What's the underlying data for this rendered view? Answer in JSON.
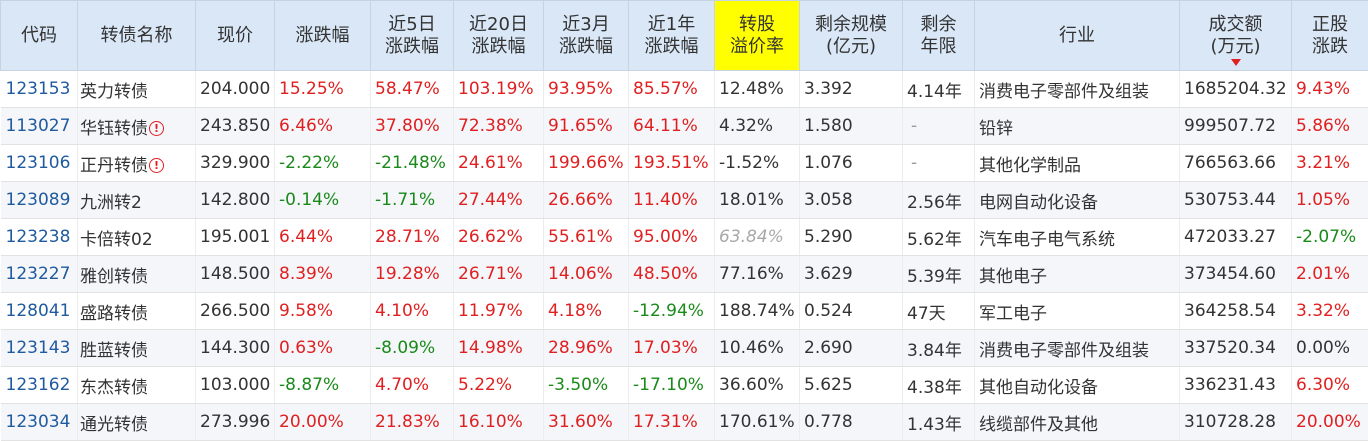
{
  "columns": [
    "代码",
    "转债名称",
    "现价",
    "涨跌幅",
    "近5日\n涨跌幅",
    "近20日\n涨跌幅",
    "近3月\n涨跌幅",
    "近1年\n涨跌幅",
    "转股\n溢价率",
    "剩余规模\n(亿元)",
    "剩余\n年限",
    "行业",
    "成交额\n(万元)",
    "正股\n涨跌"
  ],
  "highlight_column": 8,
  "sorted_column": 12,
  "sort_direction": "desc",
  "rows": [
    {
      "code": "123153",
      "name": "英力转债",
      "warn": false,
      "price": "204.000",
      "chg": "15.25%",
      "chg5": "58.47%",
      "chg20": "103.19%",
      "chg3m": "93.95%",
      "chg1y": "85.57%",
      "premium": "12.48%",
      "premium_muted": false,
      "size": "3.392",
      "years": "4.14年",
      "industry": "消费电子零部件及组装",
      "amount": "1685204.32",
      "stock_chg": "9.43%"
    },
    {
      "code": "113027",
      "name": "华钰转债",
      "warn": true,
      "price": "243.850",
      "chg": "6.46%",
      "chg5": "37.80%",
      "chg20": "72.38%",
      "chg3m": "91.65%",
      "chg1y": "64.11%",
      "premium": "4.32%",
      "premium_muted": false,
      "size": "1.580",
      "years": "-",
      "industry": "铅锌",
      "amount": "999507.72",
      "stock_chg": "5.86%"
    },
    {
      "code": "123106",
      "name": "正丹转债",
      "warn": true,
      "price": "329.900",
      "chg": "-2.22%",
      "chg5": "-21.48%",
      "chg20": "24.61%",
      "chg3m": "199.66%",
      "chg1y": "193.51%",
      "premium": "-1.52%",
      "premium_muted": false,
      "size": "1.076",
      "years": "-",
      "industry": "其他化学制品",
      "amount": "766563.66",
      "stock_chg": "3.21%"
    },
    {
      "code": "123089",
      "name": "九洲转2",
      "warn": false,
      "price": "142.800",
      "chg": "-0.14%",
      "chg5": "-1.71%",
      "chg20": "27.44%",
      "chg3m": "26.66%",
      "chg1y": "11.40%",
      "premium": "18.01%",
      "premium_muted": false,
      "size": "3.058",
      "years": "2.56年",
      "industry": "电网自动化设备",
      "amount": "530753.44",
      "stock_chg": "1.05%"
    },
    {
      "code": "123238",
      "name": "卡倍转02",
      "warn": false,
      "price": "195.001",
      "chg": "6.44%",
      "chg5": "28.71%",
      "chg20": "26.62%",
      "chg3m": "55.61%",
      "chg1y": "95.00%",
      "premium": "63.84%",
      "premium_muted": true,
      "size": "5.290",
      "years": "5.62年",
      "industry": "汽车电子电气系统",
      "amount": "472033.27",
      "stock_chg": "-2.07%"
    },
    {
      "code": "123227",
      "name": "雅创转债",
      "warn": false,
      "price": "148.500",
      "chg": "8.39%",
      "chg5": "19.28%",
      "chg20": "26.71%",
      "chg3m": "14.06%",
      "chg1y": "48.50%",
      "premium": "77.16%",
      "premium_muted": false,
      "size": "3.629",
      "years": "5.39年",
      "industry": "其他电子",
      "amount": "373454.60",
      "stock_chg": "2.01%"
    },
    {
      "code": "128041",
      "name": "盛路转债",
      "warn": false,
      "price": "266.500",
      "chg": "9.58%",
      "chg5": "4.10%",
      "chg20": "11.97%",
      "chg3m": "4.18%",
      "chg1y": "-12.94%",
      "premium": "188.74%",
      "premium_muted": false,
      "size": "0.524",
      "years": "47天",
      "industry": "军工电子",
      "amount": "364258.54",
      "stock_chg": "3.32%"
    },
    {
      "code": "123143",
      "name": "胜蓝转债",
      "warn": false,
      "price": "144.300",
      "chg": "0.63%",
      "chg5": "-8.09%",
      "chg20": "14.98%",
      "chg3m": "28.96%",
      "chg1y": "17.03%",
      "premium": "10.46%",
      "premium_muted": false,
      "size": "2.690",
      "years": "3.84年",
      "industry": "消费电子零部件及组装",
      "amount": "337520.34",
      "stock_chg": "0.00%"
    },
    {
      "code": "123162",
      "name": "东杰转债",
      "warn": false,
      "price": "103.000",
      "chg": "-8.87%",
      "chg5": "4.70%",
      "chg20": "5.22%",
      "chg3m": "-3.50%",
      "chg1y": "-17.10%",
      "premium": "36.60%",
      "premium_muted": false,
      "size": "5.625",
      "years": "4.38年",
      "industry": "其他自动化设备",
      "amount": "336231.43",
      "stock_chg": "6.30%"
    },
    {
      "code": "123034",
      "name": "通光转债",
      "warn": false,
      "price": "273.996",
      "chg": "20.00%",
      "chg5": "21.83%",
      "chg20": "16.10%",
      "chg3m": "31.60%",
      "chg1y": "17.31%",
      "premium": "170.61%",
      "premium_muted": false,
      "size": "0.778",
      "years": "1.43年",
      "industry": "线缆部件及其他",
      "amount": "310728.28",
      "stock_chg": "20.00%"
    }
  ],
  "colors": {
    "up": "#e02020",
    "down": "#1a8a1a",
    "code": "#1f5a9e",
    "header_bg": "#d9e7f7",
    "highlight": "#ffff00"
  }
}
